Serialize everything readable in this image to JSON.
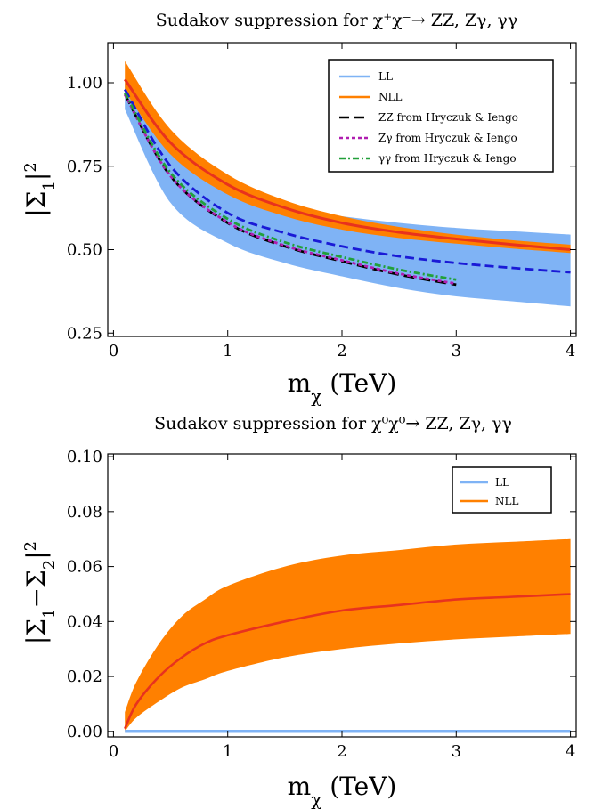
{
  "colors": {
    "ll_band": "#7fb3f5",
    "ll_line": "#7fb3f5",
    "nll_band": "#ff8000",
    "nll_line": "#e8321e",
    "mid_dashed": "#1a1ad6",
    "zz": "#000000",
    "zgamma": "#b01eb0",
    "gammagamma": "#22a03a"
  },
  "chart_data": [
    {
      "type": "area",
      "title": "Sudakov suppression for χ⁺χ⁻→ ZZ, Zγ, γγ",
      "xlabel": "m_χ (TeV)",
      "ylabel": "|Σ1|²",
      "xlim": [
        -0.05,
        4.05
      ],
      "ylim": [
        0.24,
        1.12
      ],
      "xticks": [
        0,
        1,
        2,
        3,
        4
      ],
      "xtick_labels": [
        "0",
        "1",
        "2",
        "3",
        "4"
      ],
      "yticks": [
        0.25,
        0.5,
        0.75,
        1.0
      ],
      "ytick_labels": [
        "0.25",
        "0.50",
        "0.75",
        "1.00"
      ],
      "grid": false,
      "legend_position": "top-right",
      "x": [
        0.1,
        0.5,
        1.0,
        1.5,
        2.0,
        2.5,
        3.0,
        3.5,
        4.0
      ],
      "bands": [
        {
          "name": "LL",
          "lower": [
            0.92,
            0.64,
            0.52,
            0.46,
            0.42,
            0.385,
            0.36,
            0.345,
            0.33
          ],
          "upper": [
            1.0,
            0.81,
            0.68,
            0.625,
            0.6,
            0.58,
            0.565,
            0.555,
            0.545
          ]
        },
        {
          "name": "NLL",
          "lower": [
            0.975,
            0.785,
            0.665,
            0.6,
            0.56,
            0.535,
            0.518,
            0.503,
            0.49
          ],
          "upper": [
            1.065,
            0.86,
            0.725,
            0.648,
            0.6,
            0.568,
            0.545,
            0.528,
            0.515
          ]
        }
      ],
      "series": [
        {
          "name": "NLL",
          "style": "solid",
          "values": [
            1.01,
            0.82,
            0.695,
            0.625,
            0.58,
            0.552,
            0.532,
            0.515,
            0.5
          ]
        },
        {
          "name": "",
          "style": "dashed",
          "values": [
            0.98,
            0.75,
            0.61,
            0.55,
            0.51,
            0.48,
            0.46,
            0.445,
            0.432
          ]
        },
        {
          "name": "ZZ from Hryczuk & Iengo",
          "style": "long-dash",
          "x": [
            0.1,
            0.5,
            1.0,
            1.5,
            2.0,
            2.5,
            3.0
          ],
          "values": [
            0.965,
            0.72,
            0.58,
            0.51,
            0.465,
            0.425,
            0.395
          ]
        },
        {
          "name": "Zγ from Hryczuk & Iengo",
          "style": "short-dash",
          "x": [
            0.1,
            0.5,
            1.0,
            1.5,
            2.0,
            2.5,
            3.0
          ],
          "values": [
            0.965,
            0.72,
            0.582,
            0.512,
            0.468,
            0.428,
            0.398
          ]
        },
        {
          "name": "γγ from Hryczuk & Iengo",
          "style": "dash-dot",
          "x": [
            0.1,
            0.5,
            1.0,
            1.5,
            2.0,
            2.5,
            3.0
          ],
          "values": [
            0.97,
            0.73,
            0.592,
            0.522,
            0.478,
            0.44,
            0.41
          ]
        }
      ],
      "legend": [
        "LL",
        "NLL",
        "ZZ from Hryczuk & Iengo",
        "Zγ from Hryczuk & Iengo",
        "γγ from Hryczuk & Iengo"
      ]
    },
    {
      "type": "area",
      "title": "Sudakov suppression for χ⁰χ⁰→ ZZ, Zγ, γγ",
      "xlabel": "m_χ (TeV)",
      "ylabel": "|Σ1−Σ2|²",
      "xlim": [
        -0.05,
        4.05
      ],
      "ylim": [
        -0.002,
        0.101
      ],
      "xticks": [
        0,
        1,
        2,
        3,
        4
      ],
      "xtick_labels": [
        "0",
        "1",
        "2",
        "3",
        "4"
      ],
      "yticks": [
        0.0,
        0.02,
        0.04,
        0.06,
        0.08,
        0.1
      ],
      "ytick_labels": [
        "0.00",
        "0.02",
        "0.04",
        "0.06",
        "0.08",
        "0.10"
      ],
      "grid": false,
      "legend_position": "top-right",
      "x": [
        0.1,
        0.2,
        0.4,
        0.6,
        0.8,
        1.0,
        1.5,
        2.0,
        2.5,
        3.0,
        3.5,
        4.0
      ],
      "bands": [
        {
          "name": "NLL",
          "lower": [
            0.0,
            0.005,
            0.011,
            0.016,
            0.019,
            0.022,
            0.027,
            0.03,
            0.032,
            0.0335,
            0.0345,
            0.0355
          ],
          "upper": [
            0.007,
            0.018,
            0.032,
            0.042,
            0.048,
            0.053,
            0.06,
            0.064,
            0.066,
            0.068,
            0.069,
            0.07
          ]
        }
      ],
      "series": [
        {
          "name": "NLL",
          "style": "solid",
          "values": [
            0.001,
            0.01,
            0.02,
            0.027,
            0.032,
            0.035,
            0.04,
            0.044,
            0.046,
            0.048,
            0.049,
            0.05
          ]
        },
        {
          "name": "LL",
          "style": "solid",
          "values": [
            0.0,
            0.0,
            0.0,
            0.0,
            0.0,
            0.0,
            0.0,
            0.0,
            0.0,
            0.0,
            0.0,
            0.0
          ]
        }
      ],
      "legend": [
        "LL",
        "NLL"
      ]
    }
  ]
}
